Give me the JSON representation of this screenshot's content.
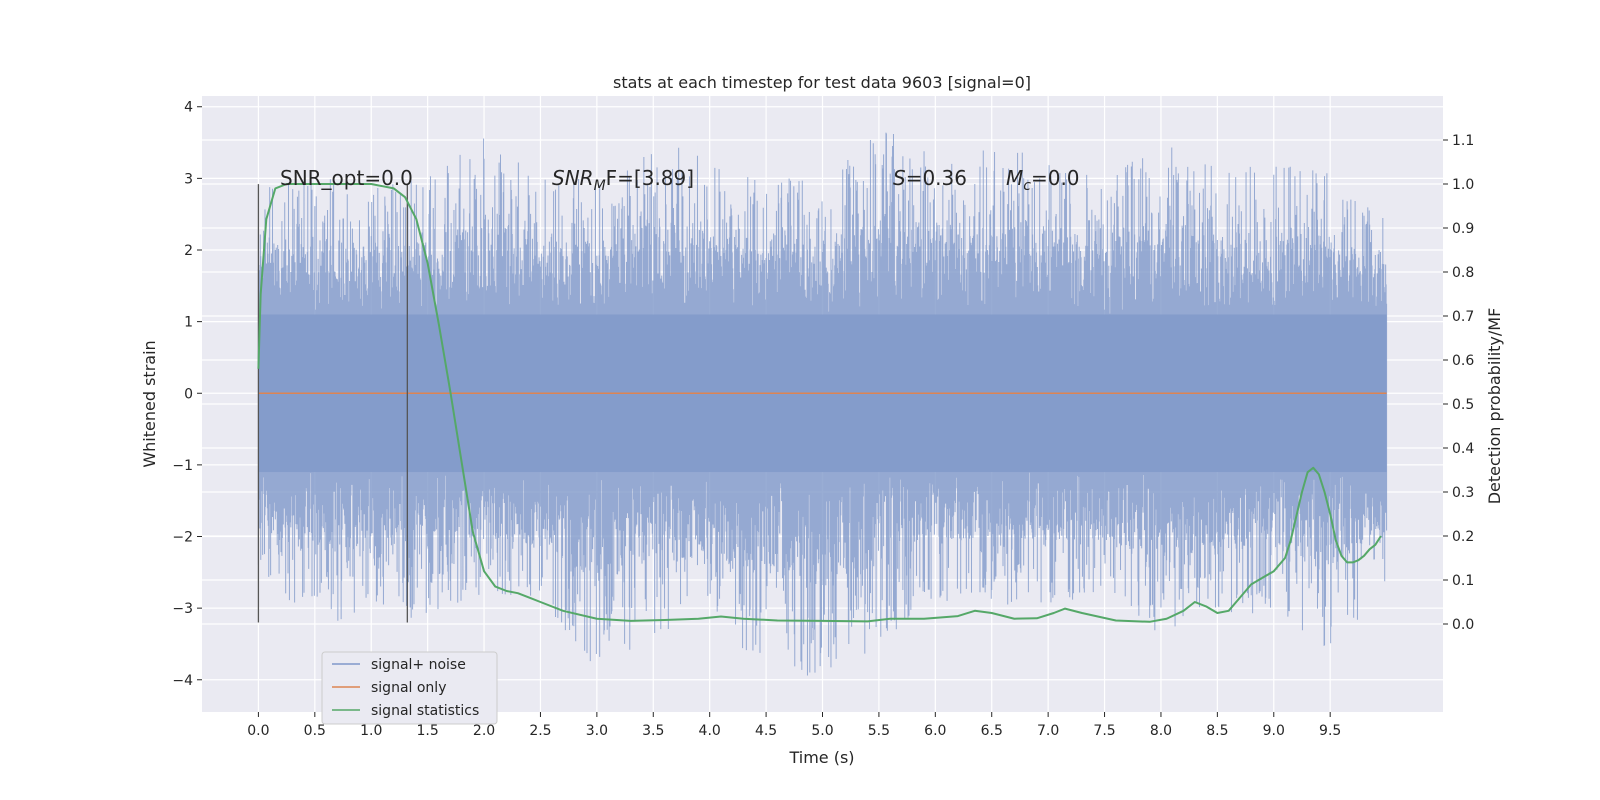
{
  "chart_data": {
    "type": "line",
    "title": "stats at each timestep for test data 9603 [signal=0]",
    "xlabel": "Time (s)",
    "ylabel_left": "Whitened strain",
    "ylabel_right": "Detection probability/MF",
    "xlim": [
      -0.5,
      10.5
    ],
    "ylim_left": [
      -4.45,
      4.15
    ],
    "ylim_right": [
      -0.2,
      1.2
    ],
    "x_ticks": [
      "0.0",
      "0.5",
      "1.0",
      "1.5",
      "2.0",
      "2.5",
      "3.0",
      "3.5",
      "4.0",
      "4.5",
      "5.0",
      "5.5",
      "6.0",
      "6.5",
      "7.0",
      "7.5",
      "8.0",
      "8.5",
      "9.0",
      "9.5"
    ],
    "y_ticks_left": [
      "−4",
      "−3",
      "−2",
      "−1",
      "0",
      "1",
      "2",
      "3",
      "4"
    ],
    "y_ticks_right": [
      "0.0",
      "0.1",
      "0.2",
      "0.3",
      "0.4",
      "0.5",
      "0.6",
      "0.7",
      "0.8",
      "0.9",
      "1.0",
      "1.1"
    ],
    "grid": true,
    "legend_position": "lower-left",
    "annotations": {
      "snr_opt": "SNR_opt=0.0",
      "snr_mf_sym": "SNR",
      "snr_mf_sub": "M",
      "snr_mf_val": "F=[3.89]",
      "s_sym": "S",
      "s_val": "=0.36",
      "mc_sym": "M",
      "mc_sub": "c",
      "mc_val": "=0.0"
    },
    "vertical_markers_x": [
      0.0,
      1.32
    ],
    "series": [
      {
        "name": "signal+ noise",
        "color": "#7f98c9",
        "envelope": {
          "x": [
            0.0,
            0.5,
            1.0,
            1.5,
            2.0,
            2.5,
            3.0,
            3.5,
            4.0,
            4.5,
            5.0,
            5.5,
            6.0,
            6.5,
            7.0,
            7.5,
            8.0,
            8.5,
            9.0,
            9.5,
            10.0
          ],
          "upper": [
            2.9,
            3.1,
            2.9,
            3.0,
            3.6,
            3.0,
            3.0,
            3.6,
            3.3,
            3.0,
            3.0,
            3.7,
            3.4,
            3.5,
            3.3,
            3.0,
            3.6,
            3.2,
            3.2,
            3.1,
            2.5
          ],
          "lower": [
            -2.6,
            -3.3,
            -3.0,
            -3.2,
            -2.8,
            -3.0,
            -3.9,
            -3.4,
            -3.3,
            -3.8,
            -4.0,
            -3.6,
            -2.9,
            -3.0,
            -3.0,
            -2.8,
            -3.4,
            -3.2,
            -3.0,
            -3.7,
            -2.7
          ]
        }
      },
      {
        "name": "signal only",
        "color": "#dd8452",
        "x": [
          0.0,
          10.0
        ],
        "y": [
          0.0,
          0.0
        ]
      },
      {
        "name": "signal statistics",
        "color": "#55a868",
        "x": [
          0.0,
          0.02,
          0.07,
          0.15,
          0.25,
          0.5,
          0.8,
          1.0,
          1.1,
          1.2,
          1.3,
          1.4,
          1.5,
          1.6,
          1.7,
          1.8,
          1.9,
          2.0,
          2.1,
          2.2,
          2.3,
          2.4,
          2.5,
          2.7,
          3.0,
          3.3,
          3.6,
          3.9,
          4.1,
          4.3,
          4.6,
          5.0,
          5.4,
          5.6,
          5.9,
          6.2,
          6.35,
          6.5,
          6.7,
          6.9,
          7.05,
          7.15,
          7.3,
          7.6,
          7.9,
          8.05,
          8.2,
          8.3,
          8.4,
          8.5,
          8.6,
          8.7,
          8.8,
          8.9,
          9.0,
          9.1,
          9.15,
          9.2,
          9.25,
          9.3,
          9.35,
          9.4,
          9.45,
          9.5,
          9.55,
          9.6,
          9.65,
          9.7,
          9.75,
          9.8,
          9.85,
          9.9,
          9.95
        ],
        "y": [
          0.58,
          0.75,
          0.92,
          0.99,
          1.0,
          1.0,
          1.0,
          1.0,
          0.995,
          0.99,
          0.97,
          0.92,
          0.82,
          0.68,
          0.53,
          0.37,
          0.21,
          0.12,
          0.085,
          0.075,
          0.07,
          0.06,
          0.05,
          0.03,
          0.012,
          0.007,
          0.009,
          0.012,
          0.017,
          0.012,
          0.008,
          0.007,
          0.006,
          0.012,
          0.012,
          0.018,
          0.03,
          0.025,
          0.012,
          0.013,
          0.025,
          0.035,
          0.025,
          0.008,
          0.005,
          0.012,
          0.03,
          0.05,
          0.04,
          0.025,
          0.03,
          0.06,
          0.09,
          0.105,
          0.12,
          0.15,
          0.19,
          0.245,
          0.3,
          0.345,
          0.355,
          0.34,
          0.3,
          0.25,
          0.19,
          0.155,
          0.14,
          0.14,
          0.145,
          0.155,
          0.17,
          0.18,
          0.2
        ]
      }
    ]
  }
}
